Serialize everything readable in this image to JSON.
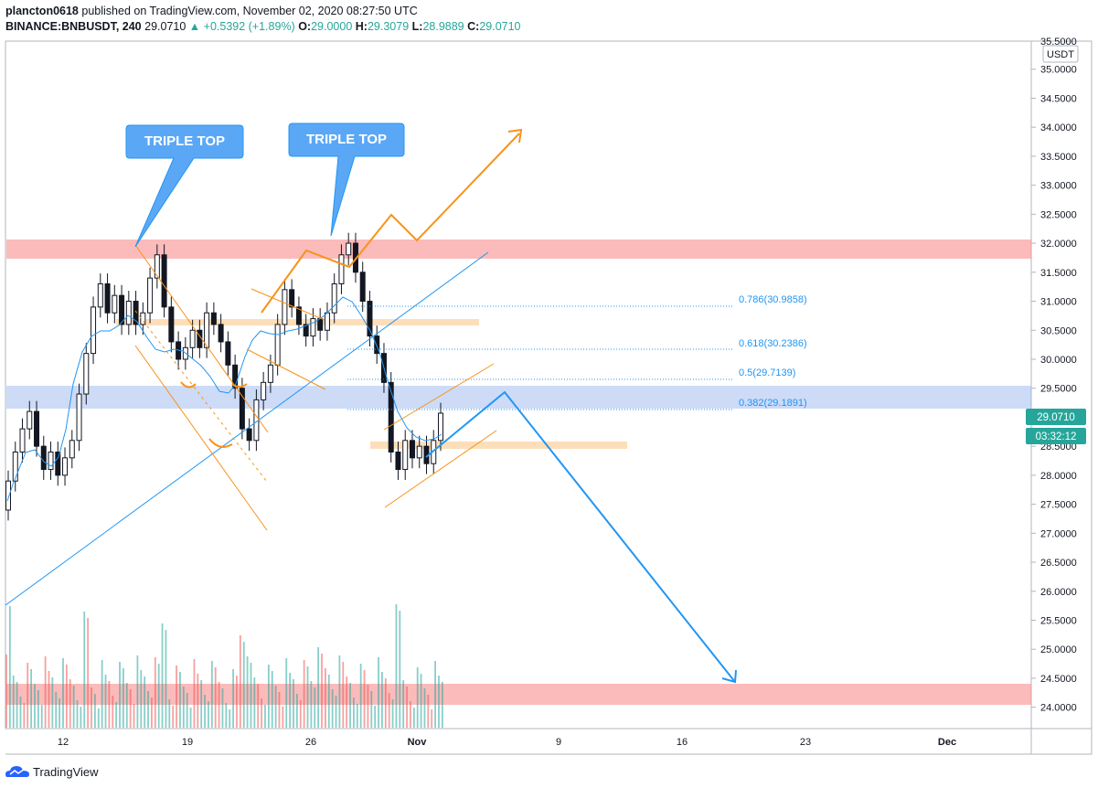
{
  "header": {
    "publisher": "plancton0618",
    "published_text": "published on TradingView.com, November 02, 2020 08:27:50 UTC",
    "symbol": "BINANCE:BNBUSDT, 240",
    "last": "29.0710",
    "change": "▲ +0.5392 (+1.89%)",
    "o_label": "O:",
    "o": "29.0000",
    "h_label": "H:",
    "h": "29.3079",
    "l_label": "L:",
    "l": "28.9889",
    "c_label": "C:",
    "c": "29.0710"
  },
  "price_axis": {
    "currency_badge": "USDT",
    "top_partial": "35.5000",
    "ticks": [
      "35.0000",
      "34.5000",
      "34.0000",
      "33.5000",
      "33.0000",
      "32.5000",
      "32.0000",
      "31.5000",
      "31.0000",
      "30.5000",
      "30.0000",
      "29.5000",
      "29.0000",
      "28.5000",
      "28.0000",
      "27.5000",
      "27.0000",
      "26.5000",
      "26.0000",
      "25.5000",
      "25.0000",
      "24.5000",
      "24.0000"
    ],
    "last_price_tag": "29.0710",
    "countdown_tag": "03:32:12"
  },
  "time_axis": {
    "labels": [
      {
        "text": "12",
        "bold": false
      },
      {
        "text": "19",
        "bold": false
      },
      {
        "text": "26",
        "bold": false
      },
      {
        "text": "Nov",
        "bold": true
      },
      {
        "text": "9",
        "bold": false
      },
      {
        "text": "16",
        "bold": false
      },
      {
        "text": "23",
        "bold": false
      },
      {
        "text": "Dec",
        "bold": true
      }
    ]
  },
  "annotations": {
    "callout_1": "TRIPLE TOP",
    "callout_2": "TRIPLE TOP",
    "fib_levels": [
      {
        "label": "0.786(30.9858)",
        "price": 30.9858
      },
      {
        "label": "0.618(30.2386)",
        "price": 30.2386
      },
      {
        "label": "0.5(29.7139)",
        "price": 29.7139
      },
      {
        "label": "0.382(29.1891)",
        "price": 29.1891
      }
    ]
  },
  "footer": {
    "brand": "TradingView"
  },
  "colors": {
    "up": "#26a69a",
    "down": "#ef5350",
    "ma": "#2196f3",
    "resistance_zone": "#f88e8e",
    "support_zone": "#9bb8ef",
    "orange": "#f7931a",
    "tag_bg": "#26a69a"
  },
  "chart_data": {
    "type": "candlestick",
    "symbol": "BINANCE:BNBUSDT",
    "interval": "240",
    "ylim": [
      23.9,
      35.5
    ],
    "candles_approx": [
      [
        27.4,
        27.9
      ],
      [
        27.9,
        28.4
      ],
      [
        28.4,
        28.8
      ],
      [
        28.8,
        29.1
      ],
      [
        29.1,
        28.5
      ],
      [
        28.5,
        28.1
      ],
      [
        28.1,
        28.4
      ],
      [
        28.4,
        28.0
      ],
      [
        28.0,
        28.3
      ],
      [
        28.3,
        28.6
      ],
      [
        28.6,
        29.4
      ],
      [
        29.4,
        30.1
      ],
      [
        30.1,
        30.9
      ],
      [
        30.9,
        31.3
      ],
      [
        31.3,
        30.8
      ],
      [
        30.8,
        31.1
      ],
      [
        31.1,
        30.6
      ],
      [
        30.6,
        31.0
      ],
      [
        31.0,
        30.6
      ],
      [
        30.6,
        30.8
      ],
      [
        30.8,
        31.4
      ],
      [
        31.4,
        31.8
      ],
      [
        31.8,
        30.9
      ],
      [
        30.9,
        30.3
      ],
      [
        30.3,
        30.0
      ],
      [
        30.0,
        30.2
      ],
      [
        30.2,
        30.5
      ],
      [
        30.5,
        30.2
      ],
      [
        30.2,
        30.8
      ],
      [
        30.8,
        30.6
      ],
      [
        30.6,
        30.3
      ],
      [
        30.3,
        29.9
      ],
      [
        29.9,
        29.5
      ],
      [
        29.5,
        28.8
      ],
      [
        28.8,
        28.6
      ],
      [
        28.6,
        29.3
      ],
      [
        29.3,
        29.6
      ],
      [
        29.6,
        29.9
      ],
      [
        29.9,
        30.6
      ],
      [
        30.6,
        31.2
      ],
      [
        31.2,
        30.9
      ],
      [
        30.9,
        30.6
      ],
      [
        30.6,
        30.4
      ],
      [
        30.4,
        30.7
      ],
      [
        30.7,
        30.5
      ],
      [
        30.5,
        30.8
      ],
      [
        30.8,
        31.3
      ],
      [
        31.3,
        31.8
      ],
      [
        31.8,
        32.0
      ],
      [
        32.0,
        31.5
      ],
      [
        31.5,
        31.0
      ],
      [
        31.0,
        30.4
      ],
      [
        30.4,
        30.1
      ],
      [
        30.1,
        29.6
      ],
      [
        29.6,
        28.4
      ],
      [
        28.4,
        28.1
      ],
      [
        28.1,
        28.6
      ],
      [
        28.6,
        28.3
      ],
      [
        28.3,
        28.5
      ],
      [
        28.5,
        28.2
      ],
      [
        28.2,
        28.6
      ],
      [
        28.6,
        29.07
      ]
    ],
    "moving_average": "blue line tracking price",
    "zones": [
      {
        "type": "resistance",
        "from": 31.8,
        "to": 32.1
      },
      {
        "type": "support",
        "from": 29.2,
        "to": 29.6
      },
      {
        "type": "target",
        "from": 24.1,
        "to": 24.4
      }
    ],
    "grid": false
  }
}
